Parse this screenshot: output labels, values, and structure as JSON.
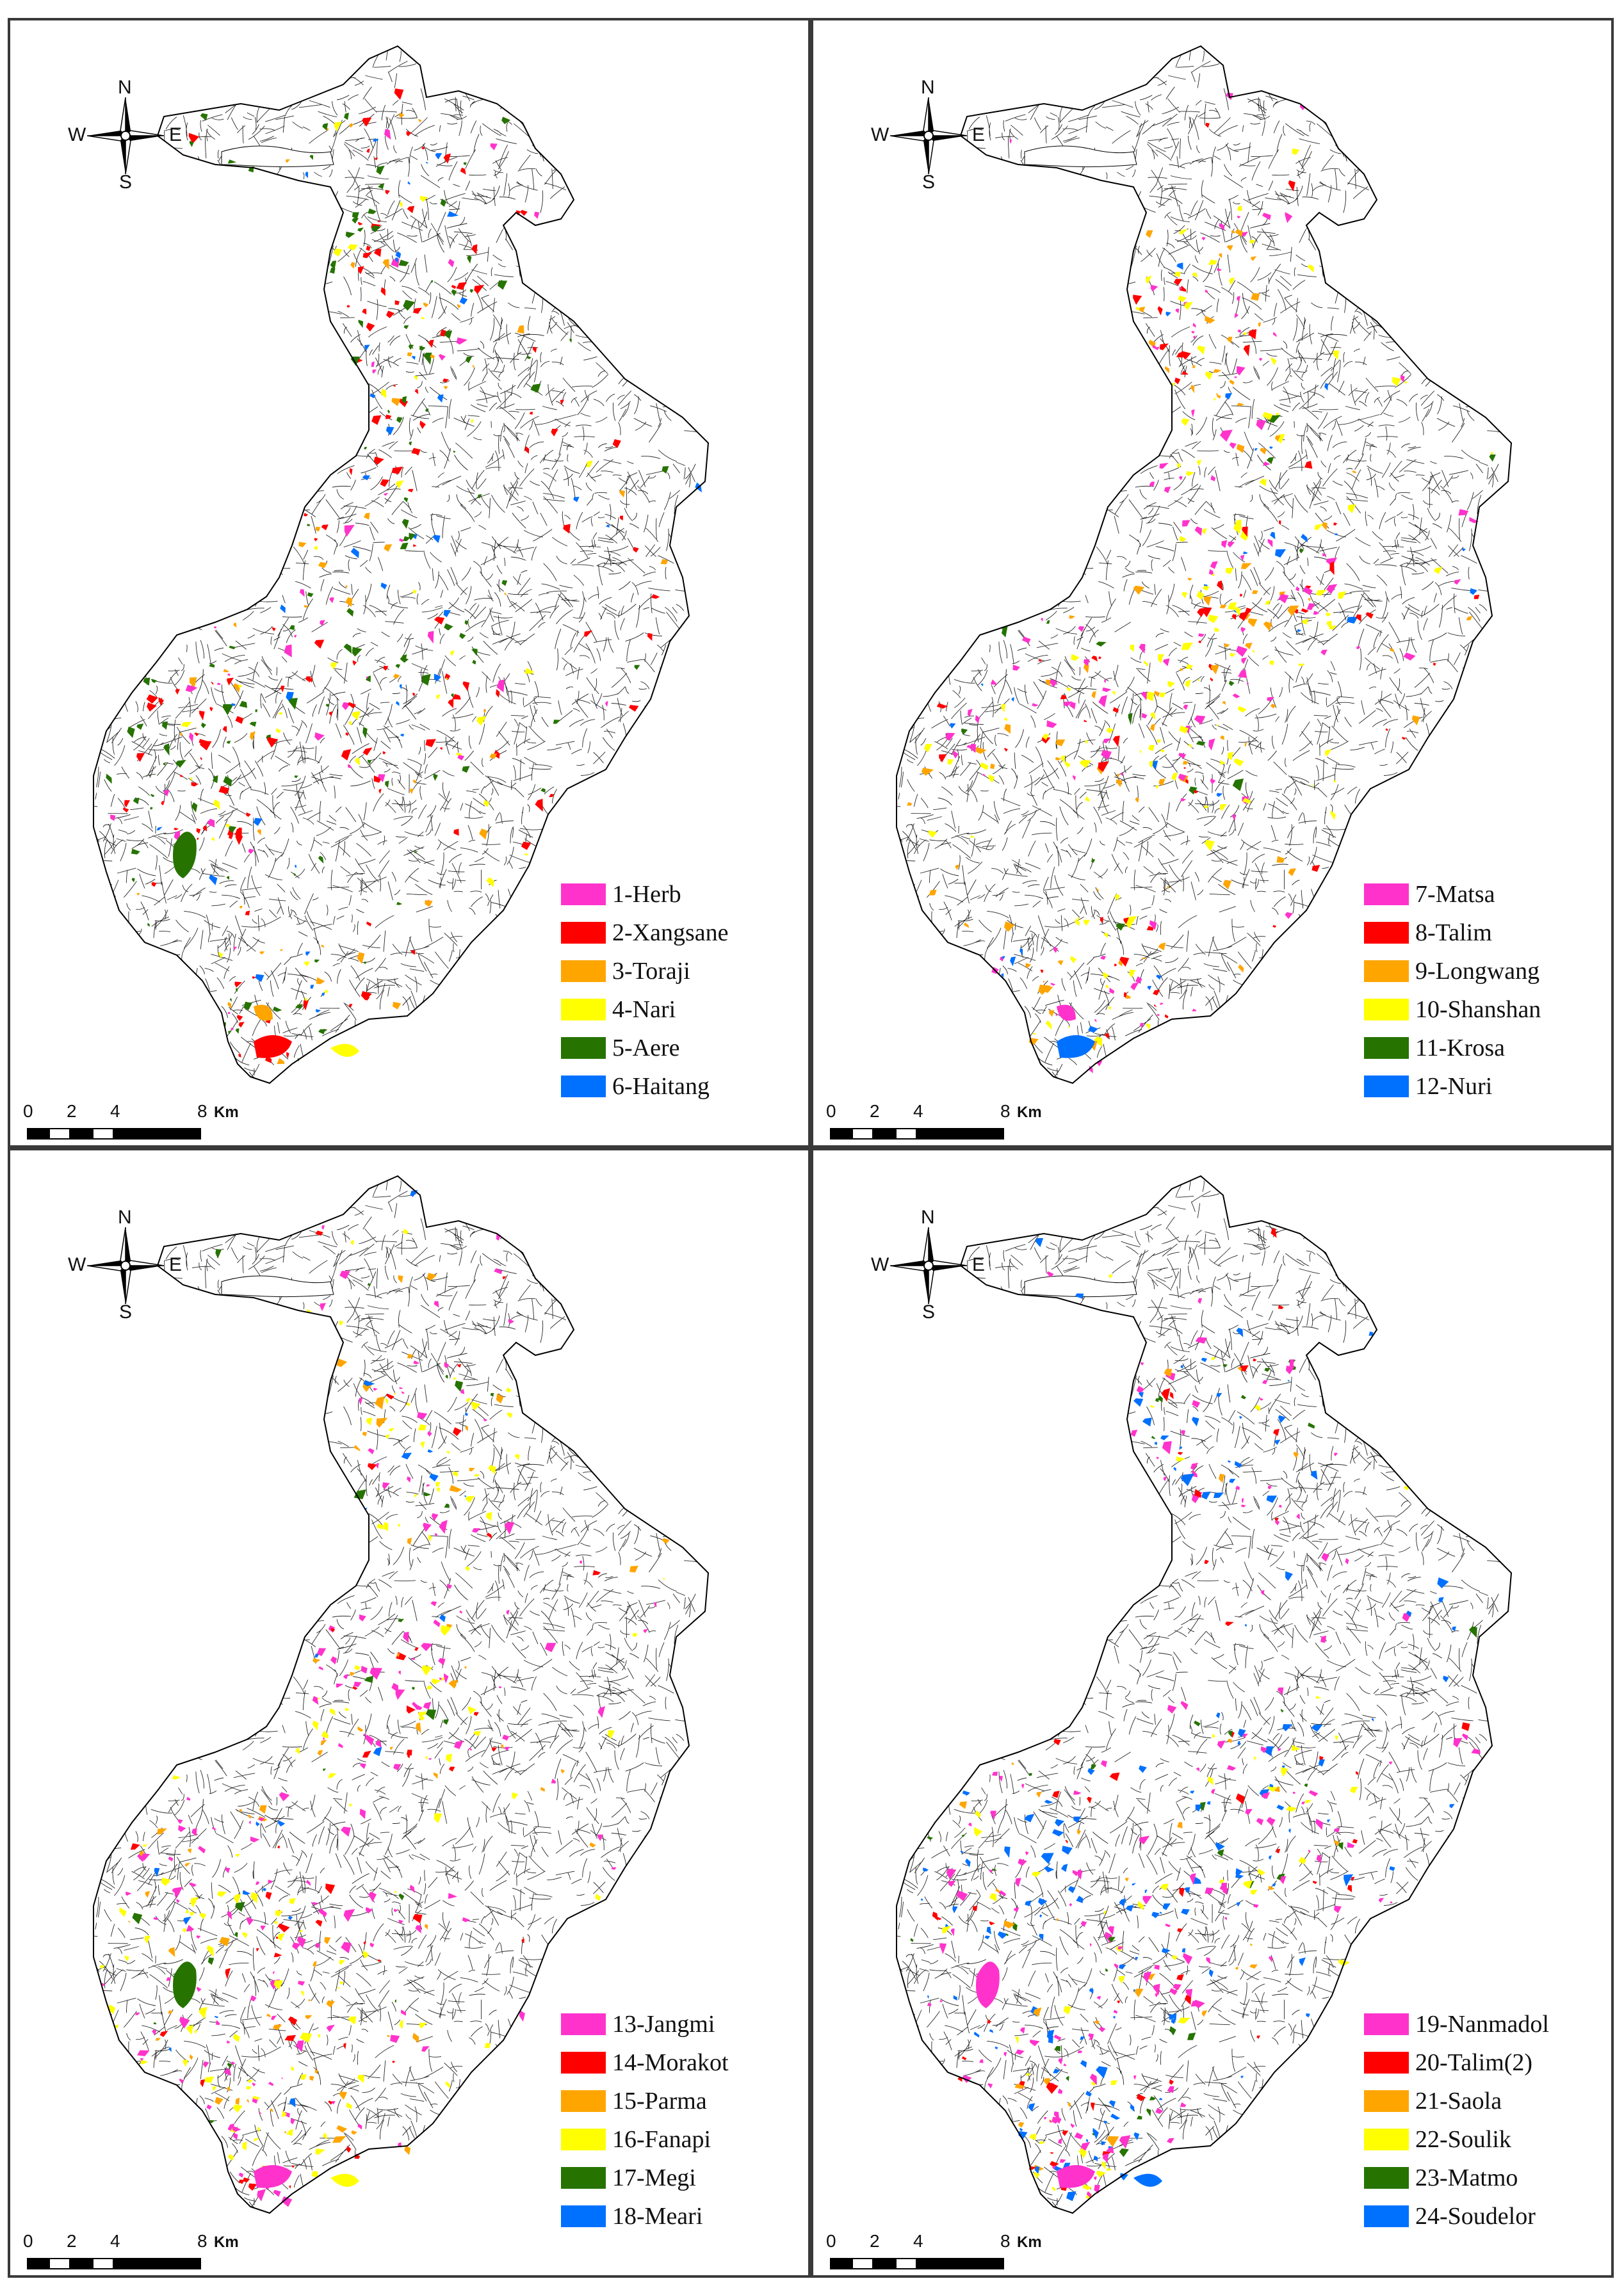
{
  "panels": [
    {
      "legend": [
        {
          "label": "1-Herb",
          "color": "#ff33cc"
        },
        {
          "label": "2-Xangsane",
          "color": "#ff0000"
        },
        {
          "label": "3-Toraji",
          "color": "#ffa500"
        },
        {
          "label": "4-Nari",
          "color": "#ffff00"
        },
        {
          "label": "5-Aere",
          "color": "#267300"
        },
        {
          "label": "6-Haitang",
          "color": "#0070ff"
        }
      ]
    },
    {
      "legend": [
        {
          "label": "7-Matsa",
          "color": "#ff33cc"
        },
        {
          "label": "8-Talim",
          "color": "#ff0000"
        },
        {
          "label": "9-Longwang",
          "color": "#ffa500"
        },
        {
          "label": "10-Shanshan",
          "color": "#ffff00"
        },
        {
          "label": "11-Krosa",
          "color": "#267300"
        },
        {
          "label": "12-Nuri",
          "color": "#0070ff"
        }
      ]
    },
    {
      "legend": [
        {
          "label": "13-Jangmi",
          "color": "#ff33cc"
        },
        {
          "label": "14-Morakot",
          "color": "#ff0000"
        },
        {
          "label": "15-Parma",
          "color": "#ffa500"
        },
        {
          "label": "16-Fanapi",
          "color": "#ffff00"
        },
        {
          "label": "17-Megi",
          "color": "#267300"
        },
        {
          "label": "18-Meari",
          "color": "#0070ff"
        }
      ]
    },
    {
      "legend": [
        {
          "label": "19-Nanmadol",
          "color": "#ff33cc"
        },
        {
          "label": "20-Talim(2)",
          "color": "#ff0000"
        },
        {
          "label": "21-Saola",
          "color": "#ffa500"
        },
        {
          "label": "22-Soulik",
          "color": "#ffff00"
        },
        {
          "label": "23-Matmo",
          "color": "#267300"
        },
        {
          "label": "24-Soudelor",
          "color": "#0070ff"
        }
      ]
    }
  ],
  "north_arrow": {
    "n": "N",
    "s": "S",
    "w": "W",
    "e": "E"
  },
  "scale_bar": {
    "ticks": [
      "0",
      "2",
      "4",
      "8"
    ],
    "units": "Km"
  },
  "map_style": {
    "boundary_color": "#000000",
    "background": "#ffffff"
  }
}
